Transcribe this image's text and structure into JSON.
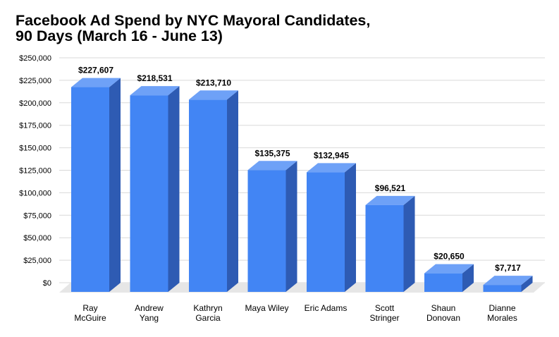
{
  "title_lines": [
    "Facebook Ad Spend by NYC Mayoral Candidates,",
    "90 Days (March 16 - June 13)"
  ],
  "colors": {
    "bar_front": "#4285f4",
    "bar_side": "#2e5bb3",
    "bar_top": "#6ea1f7",
    "floor": "#e6e6e6",
    "grid": "#d9d9d9"
  },
  "chart_data": {
    "type": "bar",
    "title": "Facebook Ad Spend by NYC Mayoral Candidates, 90 Days (March 16 - June 13)",
    "categories": [
      [
        "Ray",
        "McGuire"
      ],
      [
        "Andrew",
        "Yang"
      ],
      [
        "Kathryn",
        "Garcia"
      ],
      [
        "Maya Wiley"
      ],
      [
        "Eric Adams"
      ],
      [
        "Scott",
        "Stringer"
      ],
      [
        "Shaun",
        "Donovan"
      ],
      [
        "Dianne",
        "Morales"
      ]
    ],
    "values": [
      227607,
      218531,
      213710,
      135375,
      132945,
      96521,
      20650,
      7717
    ],
    "data_labels": [
      "$227,607",
      "$218,531",
      "$213,710",
      "$135,375",
      "$132,945",
      "$96,521",
      "$20,650",
      "$7,717"
    ],
    "yticks": [
      0,
      25000,
      50000,
      75000,
      100000,
      125000,
      150000,
      175000,
      200000,
      225000,
      250000
    ],
    "ytick_labels": [
      "$0",
      "$25,000",
      "$50,000",
      "$75,000",
      "$100,000",
      "$125,000",
      "$150,000",
      "$175,000",
      "$200,000",
      "$225,000",
      "$250,000"
    ],
    "ylim": [
      0,
      250000
    ],
    "xlabel": "",
    "ylabel": "",
    "grid": true,
    "legend": "none",
    "style": "3d"
  }
}
